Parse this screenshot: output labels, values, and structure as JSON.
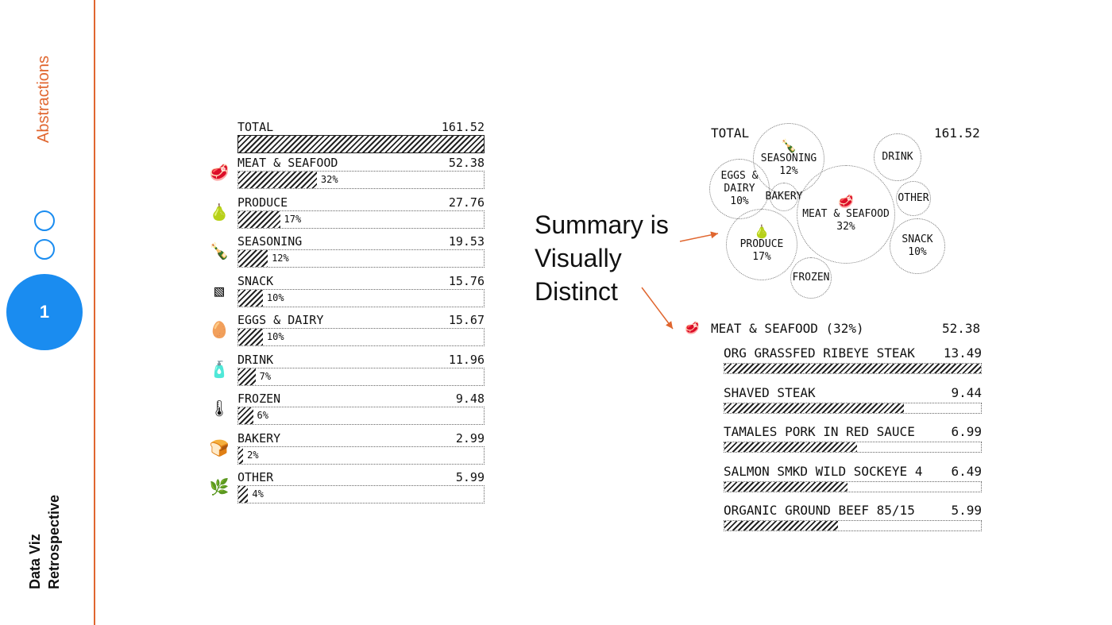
{
  "sidebar": {
    "section_title": "Abstractions",
    "deck_title_line1": "Data Viz",
    "deck_title_line2": "Retrospective",
    "page_number": "1",
    "accent_color": "#e0662f",
    "nav_color": "#1a8cf0"
  },
  "annotation": {
    "lines": [
      "Summary is",
      "Visually",
      "Distinct"
    ]
  },
  "chart_data": [
    {
      "type": "bar",
      "orientation": "horizontal",
      "total_label": "TOTAL",
      "total_value": "161.52",
      "categories": [
        {
          "label": "MEAT & SEAFOOD",
          "value": "52.38",
          "pct": "32%",
          "fraction": 0.32,
          "icon": "steak-icon"
        },
        {
          "label": "PRODUCE",
          "value": "27.76",
          "pct": "17%",
          "fraction": 0.17,
          "icon": "pear-icon"
        },
        {
          "label": "SEASONING",
          "value": "19.53",
          "pct": "12%",
          "fraction": 0.12,
          "icon": "bottle-icon"
        },
        {
          "label": "SNACK",
          "value": "15.76",
          "pct": "10%",
          "fraction": 0.1,
          "icon": "snack-box-icon"
        },
        {
          "label": "EGGS & DAIRY",
          "value": "15.67",
          "pct": "10%",
          "fraction": 0.1,
          "icon": "eggs-icon"
        },
        {
          "label": "DRINK",
          "value": "11.96",
          "pct": "7%",
          "fraction": 0.07,
          "icon": "drink-bottle-icon"
        },
        {
          "label": "FROZEN",
          "value": "9.48",
          "pct": "6%",
          "fraction": 0.06,
          "icon": "thermometer-icon"
        },
        {
          "label": "BAKERY",
          "value": "2.99",
          "pct": "2%",
          "fraction": 0.02,
          "icon": "bread-icon"
        },
        {
          "label": "OTHER",
          "value": "5.99",
          "pct": "4%",
          "fraction": 0.04,
          "icon": "plant-icon"
        }
      ]
    },
    {
      "type": "bubble",
      "total_label": "TOTAL",
      "total_value": "161.52",
      "bubbles": [
        {
          "label": "SEASONING",
          "pct": "12%",
          "icon": "bottle-icon"
        },
        {
          "label": "EGGS & DAIRY",
          "pct": "10%"
        },
        {
          "label": "BAKERY",
          "pct": ""
        },
        {
          "label": "MEAT & SEAFOOD",
          "pct": "32%",
          "icon": "steak-icon"
        },
        {
          "label": "DRINK",
          "pct": ""
        },
        {
          "label": "OTHER",
          "pct": ""
        },
        {
          "label": "PRODUCE",
          "pct": "17%",
          "icon": "pear-icon"
        },
        {
          "label": "SNACK",
          "pct": "10%"
        },
        {
          "label": "FROZEN",
          "pct": ""
        }
      ]
    },
    {
      "type": "bar",
      "orientation": "horizontal",
      "title": "MEAT & SEAFOOD (32%)",
      "title_value": "52.38",
      "items": [
        {
          "label": "ORG GRASSFED RIBEYE STEAK",
          "value": 13.49
        },
        {
          "label": "SHAVED STEAK",
          "value": 9.44
        },
        {
          "label": "TAMALES PORK IN RED SAUCE",
          "value": 6.99
        },
        {
          "label": "SALMON SMKD WILD SOCKEYE 4",
          "value": 6.49
        },
        {
          "label": "ORGANIC GROUND BEEF 85/15",
          "value": 5.99
        }
      ]
    }
  ]
}
